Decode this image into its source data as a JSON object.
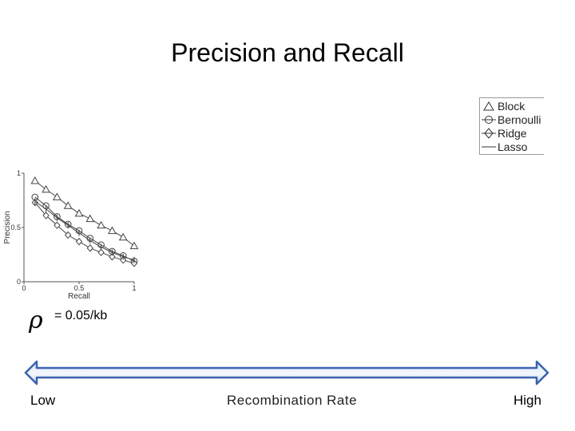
{
  "slide": {
    "title": "Precision and Recall",
    "rho_symbol": "ρ",
    "rho_label": "= 0.05/kb",
    "scale": {
      "low": "Low",
      "name": "Recombination Rate",
      "high": "High"
    }
  },
  "chart_data": {
    "type": "line",
    "title": "",
    "xlabel": "Recall",
    "ylabel": "Precision",
    "xlim": [
      0,
      1
    ],
    "ylim": [
      0,
      1
    ],
    "x_ticks": [
      "0",
      "0.5",
      "1"
    ],
    "y_ticks": [
      "0",
      "0.5",
      "1"
    ],
    "legend_position": "top-right",
    "series": [
      {
        "name": "Block",
        "marker": "triangle",
        "x": [
          0.1,
          0.2,
          0.3,
          0.4,
          0.5,
          0.6,
          0.7,
          0.8,
          0.9,
          1.0
        ],
        "y": [
          0.93,
          0.85,
          0.78,
          0.7,
          0.63,
          0.58,
          0.52,
          0.47,
          0.41,
          0.33
        ]
      },
      {
        "name": "Bernoulli",
        "marker": "circle",
        "x": [
          0.1,
          0.2,
          0.3,
          0.4,
          0.5,
          0.6,
          0.7,
          0.8,
          0.9,
          1.0
        ],
        "y": [
          0.78,
          0.7,
          0.6,
          0.53,
          0.47,
          0.4,
          0.34,
          0.28,
          0.24,
          0.19
        ]
      },
      {
        "name": "Ridge",
        "marker": "diamond",
        "x": [
          0.1,
          0.2,
          0.3,
          0.4,
          0.5,
          0.6,
          0.7,
          0.8,
          0.9,
          1.0
        ],
        "y": [
          0.73,
          0.61,
          0.52,
          0.43,
          0.37,
          0.31,
          0.27,
          0.23,
          0.2,
          0.17
        ]
      },
      {
        "name": "Lasso",
        "marker": "none",
        "x": [
          0.1,
          0.2,
          0.3,
          0.4,
          0.5,
          0.6,
          0.7,
          0.8,
          0.9,
          1.0
        ],
        "y": [
          0.74,
          0.67,
          0.59,
          0.52,
          0.45,
          0.38,
          0.32,
          0.27,
          0.23,
          0.2
        ]
      }
    ]
  }
}
